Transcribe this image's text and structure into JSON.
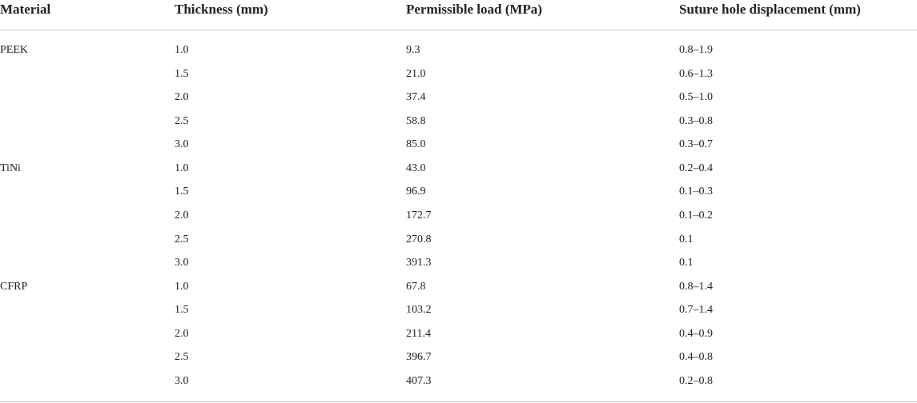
{
  "table": {
    "columns": [
      "Material",
      "Thickness (mm)",
      "Permissible load (MPa)",
      "Suture hole displacement (mm)"
    ],
    "groups": [
      {
        "material": "PEEK",
        "rows": [
          [
            "1.0",
            "9.3",
            "0.8–1.9"
          ],
          [
            "1.5",
            "21.0",
            "0.6–1.3"
          ],
          [
            "2.0",
            "37.4",
            "0.5–1.0"
          ],
          [
            "2.5",
            "58.8",
            "0.3–0.8"
          ],
          [
            "3.0",
            "85.0",
            "0.3–0.7"
          ]
        ]
      },
      {
        "material": "TiNi",
        "rows": [
          [
            "1.0",
            "43.0",
            "0.2–0.4"
          ],
          [
            "1.5",
            "96.9",
            "0.1–0.3"
          ],
          [
            "2.0",
            "172.7",
            "0.1–0.2"
          ],
          [
            "2.5",
            "270.8",
            "0.1"
          ],
          [
            "3.0",
            "391.3",
            "0.1"
          ]
        ]
      },
      {
        "material": "CFRP",
        "rows": [
          [
            "1.0",
            "67.8",
            "0.8–1.4"
          ],
          [
            "1.5",
            "103.2",
            "0.7–1.4"
          ],
          [
            "2.0",
            "211.4",
            "0.4–0.9"
          ],
          [
            "2.5",
            "396.7",
            "0.4–0.8"
          ],
          [
            "3.0",
            "407.3",
            "0.2–0.8"
          ]
        ]
      }
    ]
  }
}
